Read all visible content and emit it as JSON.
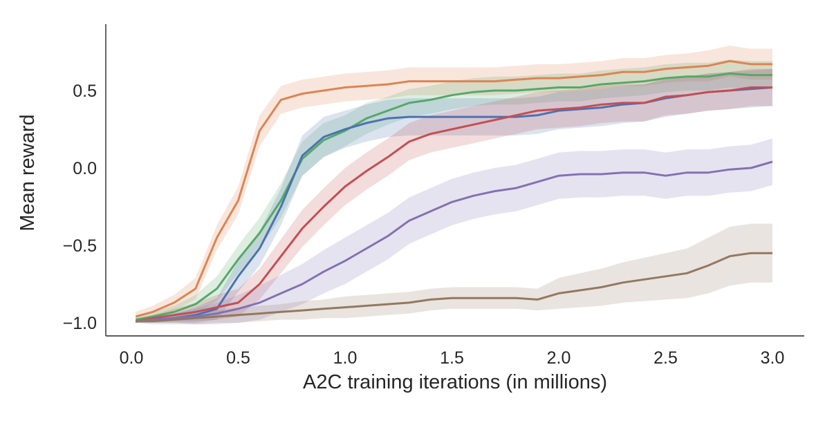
{
  "chart_data": {
    "type": "line",
    "title": "",
    "xlabel": "A2C training iterations (in millions)",
    "ylabel": "Mean reward",
    "xlim": [
      -0.12,
      3.15
    ],
    "ylim": [
      -1.08,
      0.94
    ],
    "grid": false,
    "legend": "none",
    "x_ticks": [
      0.0,
      0.5,
      1.0,
      1.5,
      2.0,
      2.5,
      3.0
    ],
    "x_tick_labels": [
      "0.0",
      "0.5",
      "1.0",
      "1.5",
      "2.0",
      "2.5",
      "3.0"
    ],
    "y_ticks": [
      -1.0,
      -0.5,
      0.0,
      0.5
    ],
    "y_tick_labels": [
      "−1.0",
      "−0.5",
      "0.0",
      "0.5"
    ],
    "x": [
      0.02,
      0.1,
      0.2,
      0.3,
      0.4,
      0.5,
      0.6,
      0.7,
      0.8,
      0.9,
      1.0,
      1.1,
      1.2,
      1.3,
      1.4,
      1.5,
      1.6,
      1.7,
      1.8,
      1.9,
      2.0,
      2.1,
      2.2,
      2.3,
      2.4,
      2.5,
      2.6,
      2.7,
      2.8,
      2.9,
      3.0
    ],
    "series": [
      {
        "name": "orange",
        "color": "#DD8452",
        "values": [
          -0.96,
          -0.93,
          -0.87,
          -0.78,
          -0.45,
          -0.21,
          0.24,
          0.44,
          0.48,
          0.5,
          0.52,
          0.53,
          0.54,
          0.56,
          0.56,
          0.56,
          0.56,
          0.56,
          0.57,
          0.58,
          0.58,
          0.59,
          0.6,
          0.62,
          0.62,
          0.64,
          0.65,
          0.66,
          0.69,
          0.67,
          0.67
        ],
        "band": [
          0.03,
          0.04,
          0.05,
          0.07,
          0.08,
          0.09,
          0.1,
          0.09,
          0.09,
          0.09,
          0.09,
          0.09,
          0.09,
          0.09,
          0.09,
          0.09,
          0.09,
          0.09,
          0.09,
          0.09,
          0.09,
          0.09,
          0.09,
          0.09,
          0.09,
          0.09,
          0.09,
          0.1,
          0.1,
          0.1,
          0.1
        ]
      },
      {
        "name": "green",
        "color": "#55A868",
        "values": [
          -0.98,
          -0.96,
          -0.93,
          -0.88,
          -0.78,
          -0.59,
          -0.42,
          -0.21,
          0.06,
          0.18,
          0.24,
          0.32,
          0.37,
          0.42,
          0.44,
          0.47,
          0.49,
          0.5,
          0.5,
          0.51,
          0.52,
          0.52,
          0.54,
          0.55,
          0.56,
          0.58,
          0.59,
          0.59,
          0.61,
          0.6,
          0.6
        ],
        "band": [
          0.02,
          0.03,
          0.04,
          0.06,
          0.08,
          0.09,
          0.1,
          0.11,
          0.11,
          0.11,
          0.1,
          0.1,
          0.09,
          0.09,
          0.09,
          0.09,
          0.09,
          0.09,
          0.09,
          0.09,
          0.09,
          0.09,
          0.09,
          0.09,
          0.09,
          0.09,
          0.09,
          0.09,
          0.09,
          0.09,
          0.09
        ]
      },
      {
        "name": "blue",
        "color": "#4C72B0",
        "values": [
          -0.99,
          -0.98,
          -0.97,
          -0.95,
          -0.91,
          -0.7,
          -0.52,
          -0.25,
          0.08,
          0.2,
          0.25,
          0.29,
          0.32,
          0.33,
          0.33,
          0.33,
          0.33,
          0.33,
          0.33,
          0.34,
          0.37,
          0.38,
          0.39,
          0.41,
          0.42,
          0.45,
          0.47,
          0.49,
          0.5,
          0.51,
          0.52
        ],
        "band": [
          0.01,
          0.02,
          0.03,
          0.05,
          0.07,
          0.1,
          0.11,
          0.12,
          0.13,
          0.13,
          0.12,
          0.12,
          0.12,
          0.12,
          0.12,
          0.12,
          0.12,
          0.12,
          0.12,
          0.12,
          0.12,
          0.12,
          0.12,
          0.12,
          0.12,
          0.12,
          0.12,
          0.12,
          0.12,
          0.12,
          0.12
        ]
      },
      {
        "name": "red",
        "color": "#C44E52",
        "values": [
          -0.99,
          -0.97,
          -0.95,
          -0.93,
          -0.9,
          -0.87,
          -0.75,
          -0.57,
          -0.39,
          -0.25,
          -0.12,
          -0.02,
          0.07,
          0.17,
          0.22,
          0.25,
          0.28,
          0.31,
          0.34,
          0.37,
          0.38,
          0.39,
          0.41,
          0.42,
          0.42,
          0.46,
          0.47,
          0.49,
          0.5,
          0.52,
          0.52
        ],
        "band": [
          0.01,
          0.02,
          0.04,
          0.06,
          0.08,
          0.09,
          0.1,
          0.11,
          0.12,
          0.12,
          0.12,
          0.12,
          0.12,
          0.12,
          0.12,
          0.12,
          0.12,
          0.12,
          0.12,
          0.12,
          0.12,
          0.12,
          0.12,
          0.12,
          0.12,
          0.12,
          0.12,
          0.12,
          0.12,
          0.12,
          0.12
        ]
      },
      {
        "name": "purple",
        "color": "#8172B3",
        "values": [
          -0.99,
          -0.98,
          -0.97,
          -0.96,
          -0.94,
          -0.91,
          -0.87,
          -0.81,
          -0.75,
          -0.67,
          -0.6,
          -0.52,
          -0.44,
          -0.34,
          -0.28,
          -0.22,
          -0.18,
          -0.15,
          -0.13,
          -0.09,
          -0.05,
          -0.04,
          -0.04,
          -0.03,
          -0.03,
          -0.05,
          -0.03,
          -0.03,
          -0.01,
          0.0,
          0.04
        ],
        "band": [
          0.01,
          0.02,
          0.03,
          0.05,
          0.07,
          0.09,
          0.11,
          0.12,
          0.13,
          0.14,
          0.15,
          0.15,
          0.15,
          0.15,
          0.15,
          0.15,
          0.15,
          0.15,
          0.15,
          0.15,
          0.15,
          0.15,
          0.15,
          0.15,
          0.15,
          0.15,
          0.15,
          0.15,
          0.15,
          0.15,
          0.15
        ]
      },
      {
        "name": "brown",
        "color": "#937860",
        "values": [
          -0.99,
          -0.99,
          -0.98,
          -0.97,
          -0.96,
          -0.95,
          -0.94,
          -0.93,
          -0.92,
          -0.91,
          -0.9,
          -0.89,
          -0.88,
          -0.87,
          -0.85,
          -0.84,
          -0.84,
          -0.84,
          -0.84,
          -0.85,
          -0.81,
          -0.79,
          -0.77,
          -0.74,
          -0.72,
          -0.7,
          -0.68,
          -0.63,
          -0.57,
          -0.55,
          -0.55
        ],
        "band": [
          0.01,
          0.02,
          0.03,
          0.04,
          0.04,
          0.05,
          0.05,
          0.05,
          0.06,
          0.06,
          0.07,
          0.07,
          0.07,
          0.07,
          0.07,
          0.07,
          0.07,
          0.07,
          0.07,
          0.07,
          0.1,
          0.11,
          0.12,
          0.13,
          0.14,
          0.15,
          0.16,
          0.18,
          0.19,
          0.19,
          0.19
        ]
      }
    ]
  }
}
